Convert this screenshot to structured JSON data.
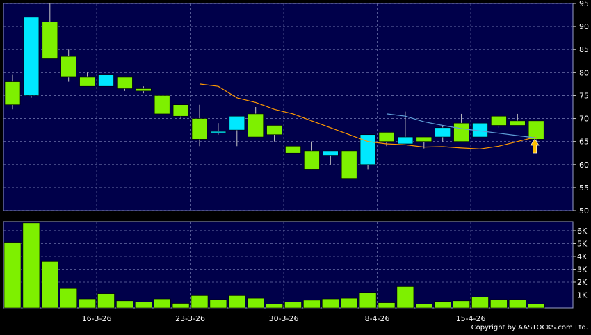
{
  "chart_data": [
    {
      "type": "candlestick",
      "ylim": [
        50,
        95
      ],
      "y_ticks": [
        50,
        55,
        60,
        65,
        70,
        75,
        80,
        85,
        90,
        95
      ],
      "x_tick_labels": [
        "16-3-26",
        "23-3-26",
        "30-3-26",
        "8-4-26",
        "15-4-26"
      ],
      "grid": true,
      "background": "#00004a",
      "colors": {
        "up": "#00e8ff",
        "down": "#7ef000",
        "ma_short": "#ff9900",
        "ma_long": "#5f9fd8",
        "marker": "#ffc000"
      },
      "candles": [
        {
          "open": 78.0,
          "high": 79.5,
          "low": 72.0,
          "close": 73.0
        },
        {
          "open": 75.0,
          "high": 92.0,
          "low": 74.5,
          "close": 92.0
        },
        {
          "open": 91.0,
          "high": 95.0,
          "low": 83.0,
          "close": 83.0
        },
        {
          "open": 83.5,
          "high": 85.0,
          "low": 78.0,
          "close": 79.0
        },
        {
          "open": 79.0,
          "high": 80.0,
          "low": 77.0,
          "close": 77.0
        },
        {
          "open": 77.0,
          "high": 79.5,
          "low": 74.0,
          "close": 79.5
        },
        {
          "open": 79.0,
          "high": 79.0,
          "low": 76.0,
          "close": 76.5
        },
        {
          "open": 76.5,
          "high": 77.0,
          "low": 75.5,
          "close": 76.0
        },
        {
          "open": 75.0,
          "high": 75.0,
          "low": 71.0,
          "close": 71.0
        },
        {
          "open": 73.0,
          "high": 73.0,
          "low": 70.0,
          "close": 70.5
        },
        {
          "open": 70.0,
          "high": 73.0,
          "low": 64.0,
          "close": 65.5
        },
        {
          "open": 67.0,
          "high": 69.0,
          "low": 66.5,
          "close": 67.2
        },
        {
          "open": 67.5,
          "high": 70.5,
          "low": 64.0,
          "close": 70.5
        },
        {
          "open": 71.0,
          "high": 72.5,
          "low": 66.0,
          "close": 66.0
        },
        {
          "open": 68.5,
          "high": 68.5,
          "low": 65.0,
          "close": 66.5
        },
        {
          "open": 64.0,
          "high": 66.5,
          "low": 62.0,
          "close": 62.5
        },
        {
          "open": 63.0,
          "high": 65.0,
          "low": 59.0,
          "close": 59.0
        },
        {
          "open": 62.0,
          "high": 63.0,
          "low": 60.0,
          "close": 63.0
        },
        {
          "open": 63.0,
          "high": 63.0,
          "low": 57.0,
          "close": 57.0
        },
        {
          "open": 60.0,
          "high": 66.5,
          "low": 59.0,
          "close": 66.5
        },
        {
          "open": 67.0,
          "high": 67.0,
          "low": 64.0,
          "close": 65.0
        },
        {
          "open": 64.5,
          "high": 71.5,
          "low": 64.5,
          "close": 66.0
        },
        {
          "open": 66.0,
          "high": 66.0,
          "low": 63.5,
          "close": 65.0
        },
        {
          "open": 66.0,
          "high": 68.5,
          "low": 65.0,
          "close": 68.0
        },
        {
          "open": 69.0,
          "high": 71.0,
          "low": 65.0,
          "close": 65.0
        },
        {
          "open": 66.0,
          "high": 70.0,
          "low": 65.0,
          "close": 69.0
        },
        {
          "open": 70.5,
          "high": 70.5,
          "low": 68.0,
          "close": 68.5
        },
        {
          "open": 69.5,
          "high": 71.0,
          "low": 68.5,
          "close": 68.5
        },
        {
          "open": 69.5,
          "high": 69.5,
          "low": 65.0,
          "close": 65.5
        }
      ],
      "ma_short": [
        null,
        null,
        null,
        null,
        null,
        null,
        null,
        null,
        null,
        null,
        77.5,
        77.0,
        74.5,
        73.5,
        72.0,
        71.0,
        69.5,
        68.0,
        66.5,
        65.0,
        64.5,
        64.3,
        63.8,
        63.9,
        63.6,
        63.4,
        64.0,
        65.0,
        66.0
      ],
      "ma_long": [
        null,
        null,
        null,
        null,
        null,
        null,
        null,
        null,
        null,
        null,
        null,
        null,
        null,
        null,
        null,
        null,
        null,
        null,
        null,
        null,
        71.0,
        70.5,
        69.3,
        68.5,
        67.8,
        67.3,
        66.8,
        66.3,
        65.8
      ],
      "marker_index": 28
    },
    {
      "type": "bar",
      "ylim": [
        0,
        6700
      ],
      "y_ticks": [
        1000,
        2000,
        3000,
        4000,
        5000,
        6000
      ],
      "y_tick_labels": [
        "1K",
        "2K",
        "3K",
        "4K",
        "5K",
        "6K"
      ],
      "values": [
        5100,
        6600,
        3600,
        1500,
        700,
        1100,
        550,
        450,
        700,
        350,
        950,
        650,
        950,
        750,
        300,
        450,
        600,
        700,
        750,
        1200,
        400,
        1650,
        300,
        500,
        550,
        850,
        650,
        650,
        300
      ]
    }
  ],
  "copyright": "Copyright by AASTOCKS.com Ltd."
}
